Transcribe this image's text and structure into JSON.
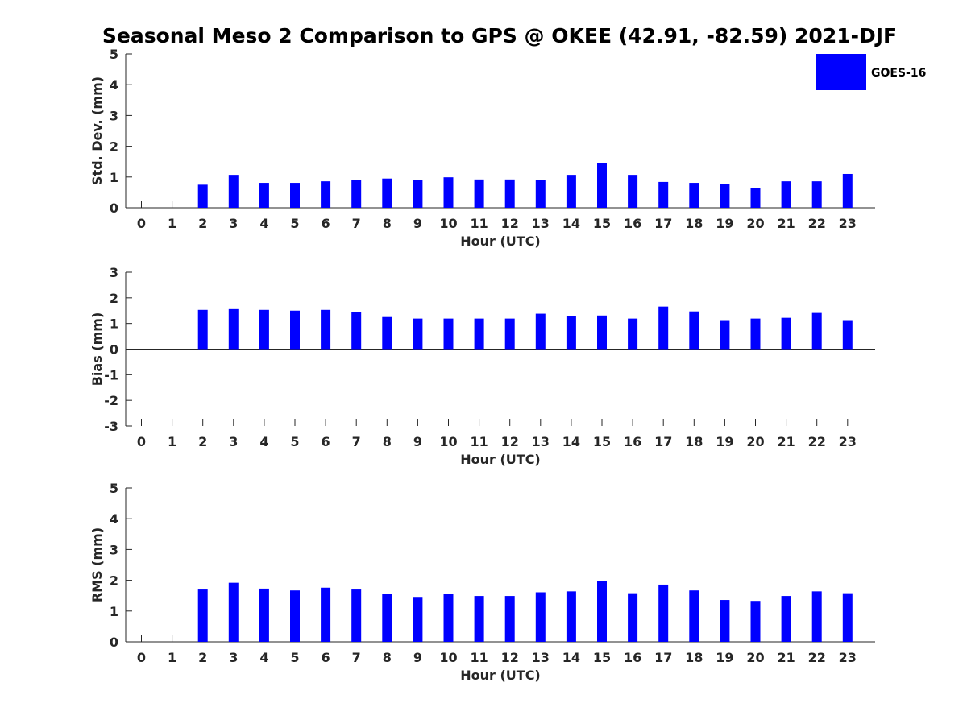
{
  "title": "Seasonal Meso 2 Comparison to GPS @ OKEE (42.91, -82.59) 2021-DJF",
  "legend": {
    "label": "GOES-16",
    "color": "#0000ff",
    "placement": "top-right"
  },
  "chart_data": [
    {
      "type": "bar",
      "xlabel": "Hour (UTC)",
      "ylabel": "Std. Dev. (mm)",
      "ylim": [
        0,
        5
      ],
      "yticks": [
        "0",
        "1",
        "2",
        "3",
        "4",
        "5"
      ],
      "categories": [
        "0",
        "1",
        "2",
        "3",
        "4",
        "5",
        "6",
        "7",
        "8",
        "9",
        "10",
        "11",
        "12",
        "13",
        "14",
        "15",
        "16",
        "17",
        "18",
        "19",
        "20",
        "21",
        "22",
        "23"
      ],
      "series": [
        {
          "name": "GOES-16",
          "color": "#0000ff",
          "values": [
            null,
            null,
            0.75,
            1.07,
            0.81,
            0.81,
            0.86,
            0.89,
            0.95,
            0.89,
            0.99,
            0.92,
            0.92,
            0.89,
            1.07,
            1.46,
            1.07,
            0.84,
            0.81,
            0.78,
            0.65,
            0.86,
            0.86,
            1.1
          ]
        }
      ]
    },
    {
      "type": "bar",
      "xlabel": "Hour (UTC)",
      "ylabel": "Bias (mm)",
      "ylim": [
        -3,
        3
      ],
      "yticks": [
        "-3",
        "-2",
        "-1",
        "0",
        "1",
        "2",
        "3"
      ],
      "categories": [
        "0",
        "1",
        "2",
        "3",
        "4",
        "5",
        "6",
        "7",
        "8",
        "9",
        "10",
        "11",
        "12",
        "13",
        "14",
        "15",
        "16",
        "17",
        "18",
        "19",
        "20",
        "21",
        "22",
        "23"
      ],
      "series": [
        {
          "name": "GOES-16",
          "color": "#0000ff",
          "values": [
            null,
            null,
            1.53,
            1.56,
            1.53,
            1.5,
            1.53,
            1.44,
            1.25,
            1.19,
            1.19,
            1.19,
            1.19,
            1.38,
            1.28,
            1.31,
            1.19,
            1.66,
            1.47,
            1.13,
            1.19,
            1.22,
            1.41,
            1.13
          ]
        }
      ]
    },
    {
      "type": "bar",
      "xlabel": "Hour (UTC)",
      "ylabel": "RMS (mm)",
      "ylim": [
        0,
        5
      ],
      "yticks": [
        "0",
        "1",
        "2",
        "3",
        "4",
        "5"
      ],
      "categories": [
        "0",
        "1",
        "2",
        "3",
        "4",
        "5",
        "6",
        "7",
        "8",
        "9",
        "10",
        "11",
        "12",
        "13",
        "14",
        "15",
        "16",
        "17",
        "18",
        "19",
        "20",
        "21",
        "22",
        "23"
      ],
      "series": [
        {
          "name": "GOES-16",
          "color": "#0000ff",
          "values": [
            null,
            null,
            1.7,
            1.92,
            1.73,
            1.67,
            1.76,
            1.7,
            1.55,
            1.46,
            1.55,
            1.49,
            1.49,
            1.61,
            1.64,
            1.97,
            1.58,
            1.86,
            1.67,
            1.36,
            1.33,
            1.49,
            1.64,
            1.58
          ]
        }
      ]
    }
  ]
}
